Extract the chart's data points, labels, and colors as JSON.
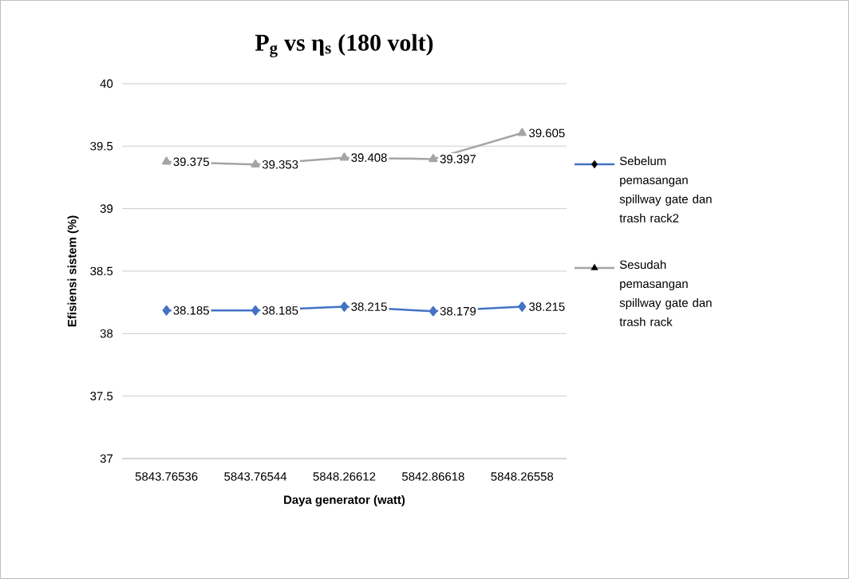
{
  "chart_data": {
    "type": "line",
    "title": "P$_{g}$ vs η$_{s}$ (180 volt)",
    "xlabel": "Daya generator (watt)",
    "ylabel": "Efisiensi sistem (%)",
    "categories": [
      "5843.76536",
      "5843.76544",
      "5848.26612",
      "5842.86618",
      "5848.26558"
    ],
    "series": [
      {
        "name": "Sebelum pemasangan spillway gate dan trash rack2",
        "color": "#4472c4",
        "marker": "diamond",
        "values": [
          38.185,
          38.185,
          38.215,
          38.179,
          38.215
        ]
      },
      {
        "name": "Sesudah pemasangan spillway gate dan trash rack",
        "color": "#a5a5a5",
        "marker": "triangle",
        "values": [
          39.375,
          39.353,
          39.408,
          39.397,
          39.605
        ]
      }
    ],
    "ylim": [
      37,
      40
    ],
    "yticks": [
      37,
      37.5,
      38,
      38.5,
      39,
      39.5,
      40
    ],
    "grid": "y",
    "legend": "right",
    "data_labels": true
  }
}
